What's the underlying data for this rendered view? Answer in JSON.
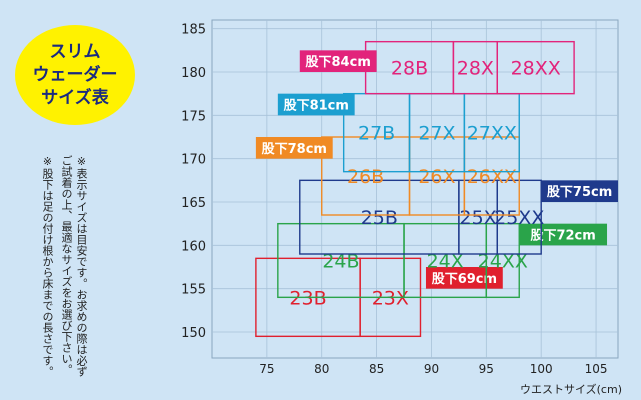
{
  "badge": {
    "lines": [
      "スリム",
      "ウェーダー",
      "サイズ表"
    ]
  },
  "notes": [
    "※表示サイズは目安です。お求めの際は必ずご試着の上、最適なサイズをお選び下さい。",
    "※股下は足の付け根から床までの長さです。"
  ],
  "chart_data": {
    "type": "table",
    "xlabel": "ウエストサイズ(cm)",
    "ylabel": "",
    "xlim": [
      70,
      107
    ],
    "ylim": [
      147,
      186
    ],
    "xticks": [
      "75",
      "80",
      "85",
      "90",
      "95",
      "100",
      "105"
    ],
    "yticks": [
      "150",
      "155",
      "160",
      "165",
      "170",
      "175",
      "180",
      "185"
    ],
    "grid": true,
    "series": [
      {
        "name": "股下69cm",
        "color": "#e0202e",
        "label_waist": [
          89.5,
          96.5
        ],
        "label_height": [
          157.5,
          155
        ],
        "sizes": [
          {
            "label": "23B",
            "waist": [
              74,
              83.5
            ],
            "height": [
              149.5,
              158.5
            ]
          },
          {
            "label": "23X",
            "waist": [
              83.5,
              89
            ],
            "height": [
              149.5,
              158.5
            ]
          }
        ]
      },
      {
        "name": "股下72cm",
        "color": "#2aa44a",
        "label_waist": [
          98,
          106
        ],
        "label_height": [
          162.5,
          160
        ],
        "sizes": [
          {
            "label": "24B",
            "waist": [
              76,
              87.5
            ],
            "height": [
              154,
              162.5
            ]
          },
          {
            "label": "24X",
            "waist": [
              87.5,
              95
            ],
            "height": [
              154,
              162.5
            ]
          },
          {
            "label": "24XX",
            "waist": [
              95,
              98
            ],
            "height": [
              154,
              162.5
            ]
          }
        ]
      },
      {
        "name": "股下75cm",
        "color": "#1f3a8c",
        "label_waist": [
          100,
          107
        ],
        "label_height": [
          167.5,
          165
        ],
        "sizes": [
          {
            "label": "25B",
            "waist": [
              78,
              92.5
            ],
            "height": [
              159,
              167.5
            ]
          },
          {
            "label": "25X",
            "waist": [
              92.5,
              96
            ],
            "height": [
              159,
              167.5
            ]
          },
          {
            "label": "25XX",
            "waist": [
              96,
              100
            ],
            "height": [
              159,
              167.5
            ]
          }
        ]
      },
      {
        "name": "股下78cm",
        "color": "#f08a24",
        "label_waist": [
          74,
          81
        ],
        "label_height": [
          172.5,
          170
        ],
        "sizes": [
          {
            "label": "26B",
            "waist": [
              80,
              88
            ],
            "height": [
              163.5,
              172.5
            ]
          },
          {
            "label": "26X",
            "waist": [
              88,
              93
            ],
            "height": [
              163.5,
              172.5
            ]
          },
          {
            "label": "26XX",
            "waist": [
              93,
              98
            ],
            "height": [
              163.5,
              172.5
            ]
          }
        ]
      },
      {
        "name": "股下81cm",
        "color": "#1c9fd0",
        "label_waist": [
          76,
          83
        ],
        "label_height": [
          177.5,
          175
        ],
        "sizes": [
          {
            "label": "27B",
            "waist": [
              82,
              88
            ],
            "height": [
              168.5,
              177.5
            ]
          },
          {
            "label": "27X",
            "waist": [
              88,
              93
            ],
            "height": [
              168.5,
              177.5
            ]
          },
          {
            "label": "27XX",
            "waist": [
              93,
              98
            ],
            "height": [
              168.5,
              177.5
            ]
          }
        ]
      },
      {
        "name": "股下84cm",
        "color": "#e2247b",
        "label_waist": [
          78,
          85
        ],
        "label_height": [
          182.5,
          180
        ],
        "sizes": [
          {
            "label": "28B",
            "waist": [
              84,
              92
            ],
            "height": [
              177.5,
              183.5
            ]
          },
          {
            "label": "28X",
            "waist": [
              92,
              96
            ],
            "height": [
              177.5,
              183.5
            ]
          },
          {
            "label": "28XX",
            "waist": [
              96,
              103
            ],
            "height": [
              177.5,
              183.5
            ]
          }
        ]
      }
    ]
  }
}
